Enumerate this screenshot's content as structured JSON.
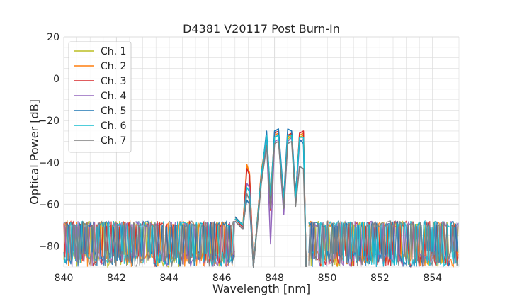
{
  "chart_data": {
    "type": "line",
    "title": "D4381 V20117 Post Burn-In",
    "xlabel": "Wavelength [nm]",
    "ylabel": "Optical Power [dB]",
    "xlim": [
      840,
      855
    ],
    "ylim": [
      -90,
      20
    ],
    "xticks": [
      840,
      842,
      844,
      846,
      848,
      850,
      852,
      854
    ],
    "yticks": [
      20,
      0,
      -20,
      -40,
      -60,
      -80
    ],
    "grid": true,
    "legend_position": "top-left",
    "noise_floor_db": -80,
    "series": [
      {
        "name": "Ch. 1",
        "color": "#bcbd22",
        "x": [
          846.5,
          846.8,
          846.95,
          847.05,
          847.2,
          847.5,
          847.7,
          847.85,
          848.0,
          848.15,
          848.35,
          848.5,
          848.65,
          848.8,
          848.95,
          849.1,
          849.2
        ],
        "y": [
          -67,
          -70,
          -42,
          -46,
          -90,
          -45,
          -29,
          -56,
          -28,
          -27,
          -59,
          -29,
          -27,
          -57,
          -28,
          -27,
          -90
        ]
      },
      {
        "name": "Ch. 2",
        "color": "#ff7f0e",
        "x": [
          846.5,
          846.8,
          846.95,
          847.05,
          847.2,
          847.5,
          847.7,
          847.85,
          848.0,
          848.15,
          848.35,
          848.5,
          848.65,
          848.8,
          848.95,
          849.1,
          849.2
        ],
        "y": [
          -66,
          -70,
          -41,
          -45,
          -90,
          -44,
          -28,
          -55,
          -27,
          -26,
          -58,
          -28,
          -26,
          -56,
          -27,
          -26,
          -90
        ]
      },
      {
        "name": "Ch. 3",
        "color": "#d62728",
        "x": [
          846.5,
          846.8,
          846.95,
          847.05,
          847.2,
          847.5,
          847.7,
          847.85,
          848.0,
          848.15,
          848.35,
          848.5,
          848.65,
          848.8,
          848.95,
          849.1,
          849.2
        ],
        "y": [
          -67,
          -71,
          -43,
          -46,
          -90,
          -45,
          -30,
          -63,
          -26,
          -25,
          -61,
          -27,
          -26,
          -58,
          -26,
          -25,
          -90
        ]
      },
      {
        "name": "Ch. 4",
        "color": "#9467bd",
        "x": [
          846.5,
          846.8,
          846.95,
          847.05,
          847.2,
          847.5,
          847.7,
          847.85,
          848.0,
          848.15,
          848.35,
          848.5,
          848.65,
          848.8,
          848.95,
          849.1,
          849.2
        ],
        "y": [
          -68,
          -72,
          -50,
          -52,
          -90,
          -48,
          -29,
          -79,
          -30,
          -29,
          -65,
          -30,
          -28,
          -60,
          -30,
          -29,
          -90
        ]
      },
      {
        "name": "Ch. 5",
        "color": "#1f77b4",
        "x": [
          846.5,
          846.8,
          846.95,
          847.05,
          847.2,
          847.5,
          847.7,
          847.85,
          848.0,
          848.15,
          848.35,
          848.5,
          848.65,
          848.8,
          848.95,
          849.1,
          849.2
        ],
        "y": [
          -66,
          -70,
          -58,
          -60,
          -90,
          -47,
          -25,
          -58,
          -25,
          -24,
          -57,
          -24,
          -25,
          -55,
          -29,
          -31,
          -90
        ]
      },
      {
        "name": "Ch. 6",
        "color": "#17becf",
        "x": [
          846.5,
          846.8,
          846.95,
          847.05,
          847.2,
          847.5,
          847.7,
          847.85,
          848.0,
          848.15,
          848.35,
          848.5,
          848.65,
          848.8,
          848.95,
          849.1,
          849.2
        ],
        "y": [
          -67,
          -70,
          -52,
          -54,
          -90,
          -46,
          -27,
          -56,
          -28,
          -27,
          -58,
          -27,
          -27,
          -57,
          -28,
          -28,
          -90
        ]
      },
      {
        "name": "Ch. 7",
        "color": "#7f7f7f",
        "x": [
          846.5,
          846.8,
          846.95,
          847.05,
          847.2,
          847.5,
          847.7,
          847.85,
          848.0,
          848.15,
          848.35,
          848.5,
          848.65,
          848.8,
          848.95,
          849.1,
          849.2
        ],
        "y": [
          -68,
          -72,
          -55,
          -58,
          -90,
          -50,
          -32,
          -62,
          -31,
          -30,
          -62,
          -31,
          -30,
          -61,
          -42,
          -43,
          -90
        ]
      }
    ]
  }
}
